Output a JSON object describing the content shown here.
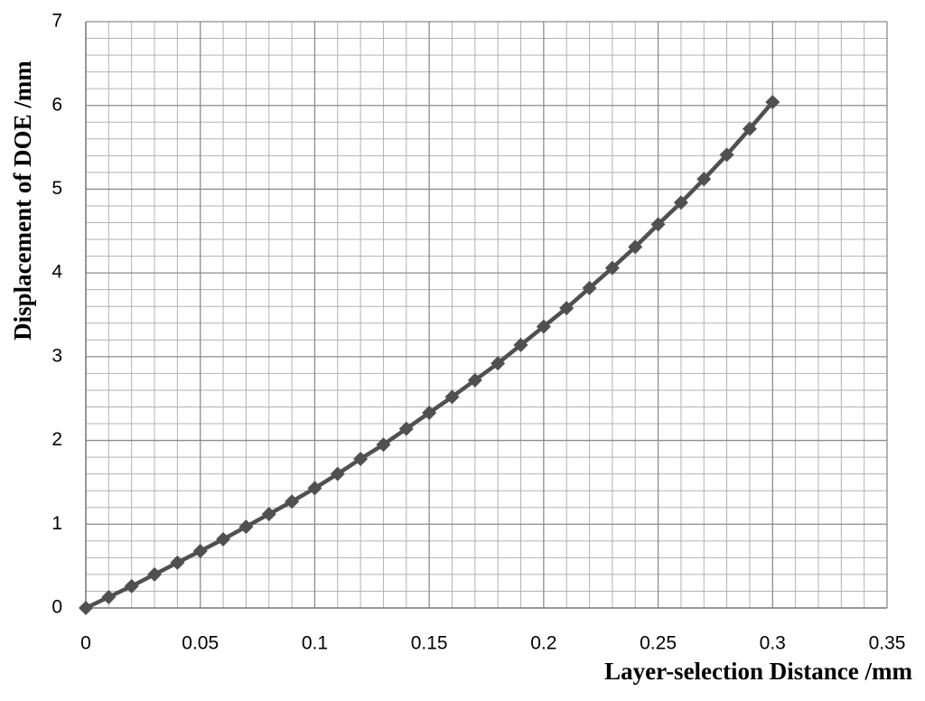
{
  "chart_data": {
    "type": "line",
    "xlabel": "Layer-selection Distance /mm",
    "ylabel": "Displacement of DOE /mm",
    "x": [
      0,
      0.01,
      0.02,
      0.03,
      0.04,
      0.05,
      0.06,
      0.07,
      0.08,
      0.09,
      0.1,
      0.11,
      0.12,
      0.13,
      0.14,
      0.15,
      0.16,
      0.17,
      0.18,
      0.19,
      0.2,
      0.21,
      0.22,
      0.23,
      0.24,
      0.25,
      0.26,
      0.27,
      0.28,
      0.29,
      0.3
    ],
    "series": [
      {
        "color": "#505050",
        "marker": "diamond",
        "values": [
          0,
          0.13,
          0.26,
          0.4,
          0.54,
          0.68,
          0.82,
          0.97,
          1.12,
          1.27,
          1.43,
          1.6,
          1.78,
          1.95,
          2.14,
          2.33,
          2.52,
          2.72,
          2.92,
          3.14,
          3.36,
          3.58,
          3.82,
          4.06,
          4.31,
          4.58,
          4.84,
          5.12,
          5.41,
          5.72,
          6.04
        ]
      }
    ],
    "xlim": [
      0,
      0.35
    ],
    "xticks": [
      0,
      0.05,
      0.1,
      0.15,
      0.2,
      0.25,
      0.3,
      0.35
    ],
    "ylim": [
      0,
      7
    ],
    "yticks": [
      0,
      1,
      2,
      3,
      4,
      5,
      6,
      7
    ],
    "grid": true,
    "minor_grid": true
  }
}
